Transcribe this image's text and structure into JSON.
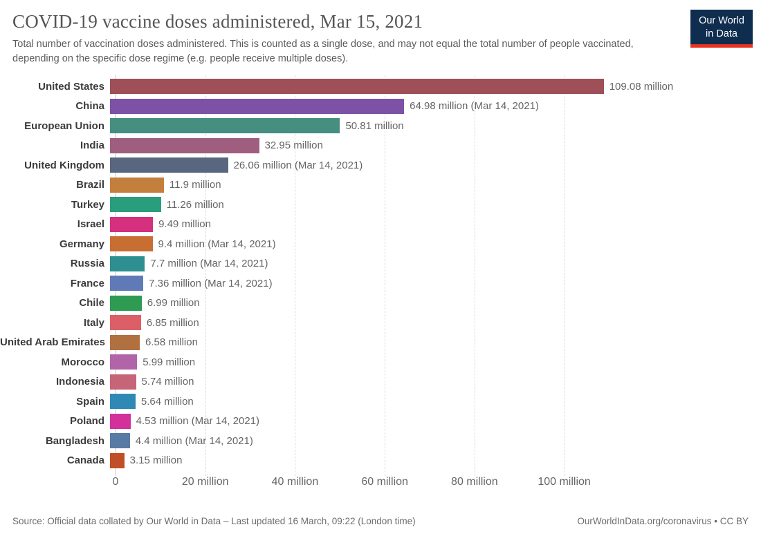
{
  "header": {
    "title": "COVID-19 vaccine doses administered, Mar 15, 2021",
    "subtitle": "Total number of vaccination doses administered. This is counted as a single dose, and may not equal the total number of people vaccinated, depending on the specific dose regime (e.g. people receive multiple doses).",
    "logo": {
      "line1": "Our World",
      "line2": "in Data",
      "bg_color": "#0f2d4e",
      "accent_color": "#e63323"
    }
  },
  "chart_data": {
    "type": "bar",
    "orientation": "horizontal",
    "title": "COVID-19 vaccine doses administered, Mar 15, 2021",
    "xlabel": "",
    "ylabel": "",
    "unit": "doses (million)",
    "xlim_million": [
      0,
      140
    ],
    "grid": "vertical-dashed",
    "legend": "none",
    "x_ticks": [
      {
        "value_million": 0,
        "label": "0"
      },
      {
        "value_million": 20,
        "label": "20 million"
      },
      {
        "value_million": 40,
        "label": "40 million"
      },
      {
        "value_million": 60,
        "label": "60 million"
      },
      {
        "value_million": 80,
        "label": "80 million"
      },
      {
        "value_million": 100,
        "label": "100 million"
      }
    ],
    "bars": [
      {
        "label": "United States",
        "value_million": 109.08,
        "value_label": "109.08 million",
        "color": "#9e4f58"
      },
      {
        "label": "China",
        "value_million": 64.98,
        "value_label": "64.98 million (Mar 14, 2021)",
        "color": "#7d52a6"
      },
      {
        "label": "European Union",
        "value_million": 50.81,
        "value_label": "50.81 million",
        "color": "#468e80"
      },
      {
        "label": "India",
        "value_million": 32.95,
        "value_label": "32.95 million",
        "color": "#a05e7f"
      },
      {
        "label": "United Kingdom",
        "value_million": 26.06,
        "value_label": "26.06 million (Mar 14, 2021)",
        "color": "#59667f"
      },
      {
        "label": "Brazil",
        "value_million": 11.9,
        "value_label": "11.9 million",
        "color": "#c57f3d"
      },
      {
        "label": "Turkey",
        "value_million": 11.26,
        "value_label": "11.26 million",
        "color": "#2a9d7d"
      },
      {
        "label": "Israel",
        "value_million": 9.49,
        "value_label": "9.49 million",
        "color": "#d4307e"
      },
      {
        "label": "Germany",
        "value_million": 9.4,
        "value_label": "9.4 million (Mar 14, 2021)",
        "color": "#c96e33"
      },
      {
        "label": "Russia",
        "value_million": 7.7,
        "value_label": "7.7 million (Mar 14, 2021)",
        "color": "#2e8f90"
      },
      {
        "label": "France",
        "value_million": 7.36,
        "value_label": "7.36 million (Mar 14, 2021)",
        "color": "#5f7ab7"
      },
      {
        "label": "Chile",
        "value_million": 6.99,
        "value_label": "6.99 million",
        "color": "#2f9a52"
      },
      {
        "label": "Italy",
        "value_million": 6.85,
        "value_label": "6.85 million",
        "color": "#dc5f67"
      },
      {
        "label": "United Arab Emirates",
        "value_million": 6.58,
        "value_label": "6.58 million",
        "color": "#b17040"
      },
      {
        "label": "Morocco",
        "value_million": 5.99,
        "value_label": "5.99 million",
        "color": "#b164a8"
      },
      {
        "label": "Indonesia",
        "value_million": 5.74,
        "value_label": "5.74 million",
        "color": "#c66577"
      },
      {
        "label": "Spain",
        "value_million": 5.64,
        "value_label": "5.64 million",
        "color": "#2f89b4"
      },
      {
        "label": "Poland",
        "value_million": 4.53,
        "value_label": "4.53 million (Mar 14, 2021)",
        "color": "#d3309c"
      },
      {
        "label": "Bangladesh",
        "value_million": 4.4,
        "value_label": "4.4 million (Mar 14, 2021)",
        "color": "#587ba3"
      },
      {
        "label": "Canada",
        "value_million": 3.15,
        "value_label": "3.15 million",
        "color": "#c04f28"
      }
    ]
  },
  "footer": {
    "source": "Source: Official data collated by Our World in Data – Last updated 16 March, 09:22 (London time)",
    "link": "OurWorldInData.org/coronavirus • CC BY"
  }
}
